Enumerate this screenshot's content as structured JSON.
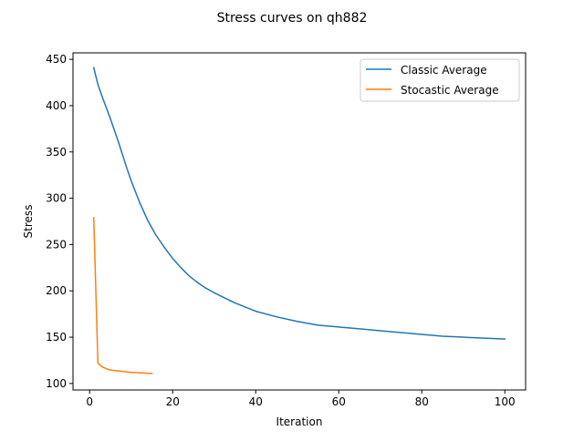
{
  "chart_data": {
    "type": "line",
    "title": "Stress curves on qh882",
    "xlabel": "Iteration",
    "ylabel": "Stress",
    "xlim": [
      -4,
      105
    ],
    "ylim": [
      93,
      457
    ],
    "xticks": [
      0,
      20,
      40,
      60,
      80,
      100
    ],
    "yticks": [
      100,
      150,
      200,
      250,
      300,
      350,
      400,
      450
    ],
    "grid": false,
    "legend_position": "top-right",
    "series": [
      {
        "name": "Classic Average",
        "color": "#1f77b4",
        "x": [
          1,
          2,
          3,
          4,
          5,
          6,
          7,
          8,
          9,
          10,
          12,
          14,
          16,
          18,
          20,
          22,
          24,
          26,
          28,
          30,
          35,
          40,
          45,
          50,
          55,
          60,
          65,
          70,
          75,
          80,
          85,
          90,
          95,
          100
        ],
        "values": [
          441,
          423,
          410,
          398,
          386,
          373,
          360,
          346,
          332,
          319,
          296,
          276,
          260,
          247,
          235,
          225,
          216,
          209,
          203,
          198,
          187,
          178,
          172,
          167,
          163,
          161,
          159,
          157,
          155,
          153,
          151,
          150,
          149,
          148
        ]
      },
      {
        "name": "Stocastic Average",
        "color": "#ff7f0e",
        "x": [
          1,
          2,
          3,
          4,
          5,
          6,
          7,
          8,
          9,
          10,
          11,
          12,
          13,
          14,
          15
        ],
        "values": [
          279,
          122,
          118,
          116,
          114.5,
          114,
          113.5,
          113,
          112.5,
          112,
          112,
          111.5,
          111.5,
          111,
          111
        ]
      }
    ]
  }
}
